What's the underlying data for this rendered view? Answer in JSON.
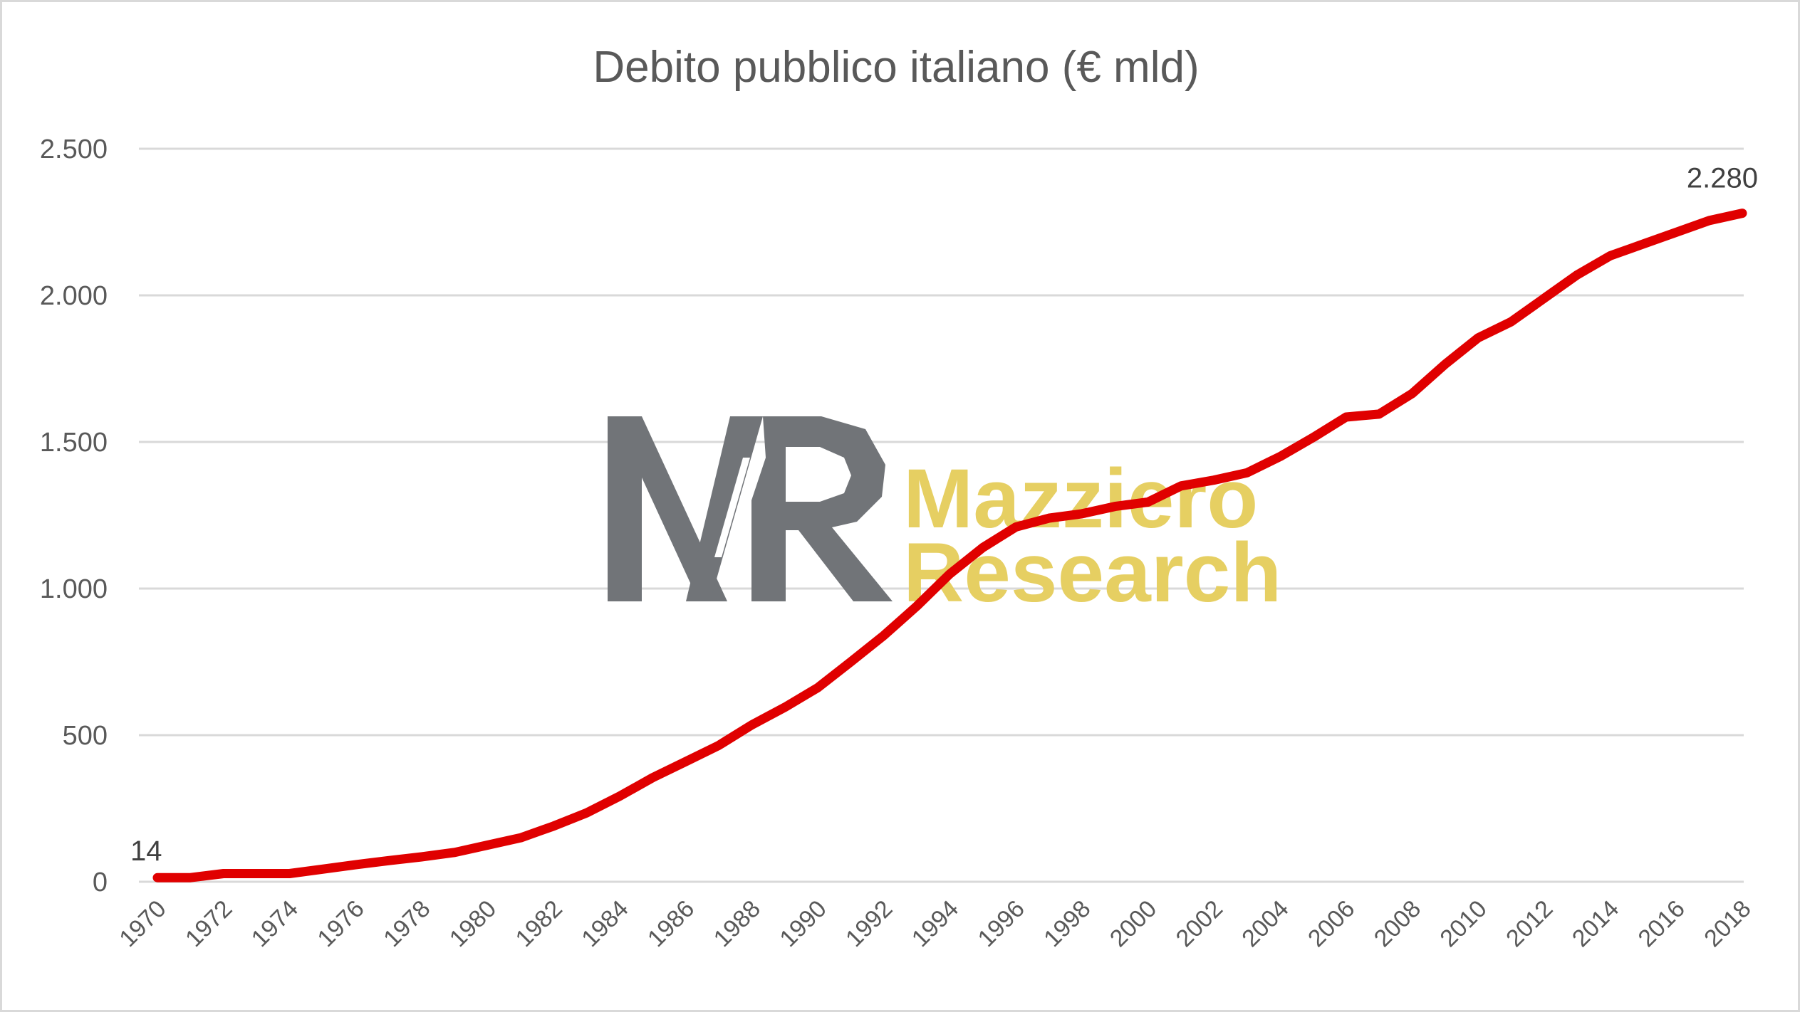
{
  "chart_data": {
    "type": "line",
    "title": "Debito pubblico italiano (€ mld)",
    "xlabel": "",
    "ylabel": "",
    "ylim": [
      0,
      2500
    ],
    "yticks": [
      0,
      500,
      1000,
      1500,
      2000,
      2500
    ],
    "ytick_labels": [
      "0",
      "500",
      "1.000",
      "1.500",
      "2.000",
      "2.500"
    ],
    "grid": true,
    "legend": "none",
    "line_color": "#e00000",
    "x": [
      1970,
      1971,
      1972,
      1973,
      1974,
      1975,
      1976,
      1977,
      1978,
      1979,
      1980,
      1981,
      1982,
      1983,
      1984,
      1985,
      1986,
      1987,
      1988,
      1989,
      1990,
      1991,
      1992,
      1993,
      1994,
      1995,
      1996,
      1997,
      1998,
      1999,
      2000,
      2001,
      2002,
      2003,
      2004,
      2005,
      2006,
      2007,
      2008,
      2009,
      2010,
      2011,
      2012,
      2013,
      2014,
      2015,
      2016,
      2017,
      2018
    ],
    "xtick_labels": [
      "1970",
      "1972",
      "1974",
      "1976",
      "1978",
      "1980",
      "1982",
      "1984",
      "1986",
      "1988",
      "1990",
      "1992",
      "1994",
      "1996",
      "1998",
      "2000",
      "2002",
      "2004",
      "2006",
      "2008",
      "2010",
      "2012",
      "2014",
      "2016",
      "2018"
    ],
    "series": [
      {
        "values": [
          14,
          14,
          28,
          28,
          28,
          43,
          58,
          72,
          85,
          100,
          125,
          150,
          190,
          235,
          292,
          355,
          410,
          465,
          535,
          595,
          662,
          750,
          840,
          940,
          1050,
          1140,
          1210,
          1240,
          1255,
          1280,
          1295,
          1350,
          1370,
          1395,
          1450,
          1515,
          1585,
          1595,
          1665,
          1765,
          1855,
          1910,
          1990,
          2070,
          2135,
          2175,
          2215,
          2255,
          2280
        ]
      }
    ],
    "data_labels": [
      {
        "x": 1970,
        "text": "14"
      },
      {
        "x": 2018,
        "text": "2.280"
      }
    ]
  },
  "watermark": {
    "name": "Mazziero Research logo",
    "monogram": "MR",
    "line1": "Mazziero",
    "line2": "Research",
    "mark_color": "#717478",
    "text_color": "#e6cf62"
  }
}
